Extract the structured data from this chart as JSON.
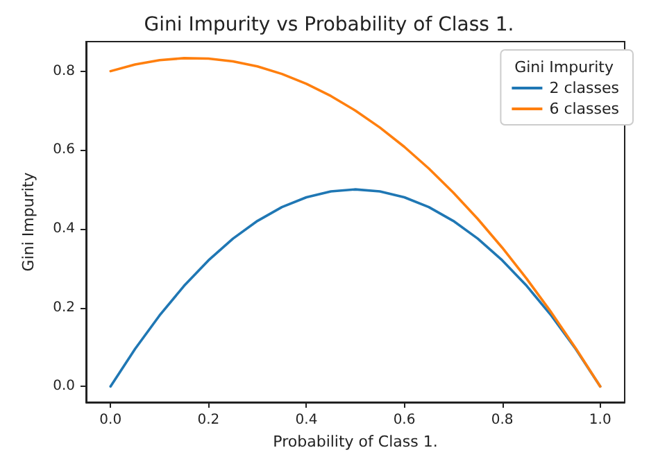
{
  "chart_data": {
    "type": "line",
    "title": "Gini Impurity vs Probability of Class 1.",
    "xlabel": "Probability of Class 1.",
    "ylabel": "Gini Impurity",
    "legend_title": "Gini Impurity",
    "legend": "top right",
    "grid": false,
    "marker": "none",
    "line_style": "solid",
    "x": [
      0,
      0.05,
      0.1,
      0.15,
      0.2,
      0.25,
      0.3,
      0.35,
      0.4,
      0.45,
      0.5,
      0.55,
      0.6,
      0.65,
      0.7,
      0.75,
      0.8,
      0.85,
      0.9,
      0.95,
      1
    ],
    "series": [
      {
        "name": "2 classes",
        "color": "#1f77b4",
        "values": [
          0,
          0.095,
          0.18,
          0.255,
          0.32,
          0.375,
          0.42,
          0.455,
          0.48,
          0.495,
          0.5,
          0.495,
          0.48,
          0.455,
          0.42,
          0.375,
          0.32,
          0.255,
          0.18,
          0.095,
          0
        ]
      },
      {
        "name": "6 classes",
        "color": "#ff7f0e",
        "values": [
          0.8,
          0.817,
          0.828,
          0.833,
          0.832,
          0.825,
          0.812,
          0.793,
          0.768,
          0.737,
          0.7,
          0.657,
          0.608,
          0.553,
          0.492,
          0.425,
          0.352,
          0.273,
          0.188,
          0.097,
          0
        ]
      }
    ],
    "xlim": [
      -0.05,
      1.05
    ],
    "ylim": [
      -0.04,
      0.875
    ],
    "xticks": [
      {
        "value": 0,
        "label": "0.0"
      },
      0.2,
      0.4,
      0.6,
      0.8,
      {
        "value": 1,
        "label": "1.0"
      }
    ],
    "yticks": [
      {
        "value": 0,
        "label": "0.0"
      },
      0.2,
      0.4,
      0.6,
      0.8
    ]
  }
}
